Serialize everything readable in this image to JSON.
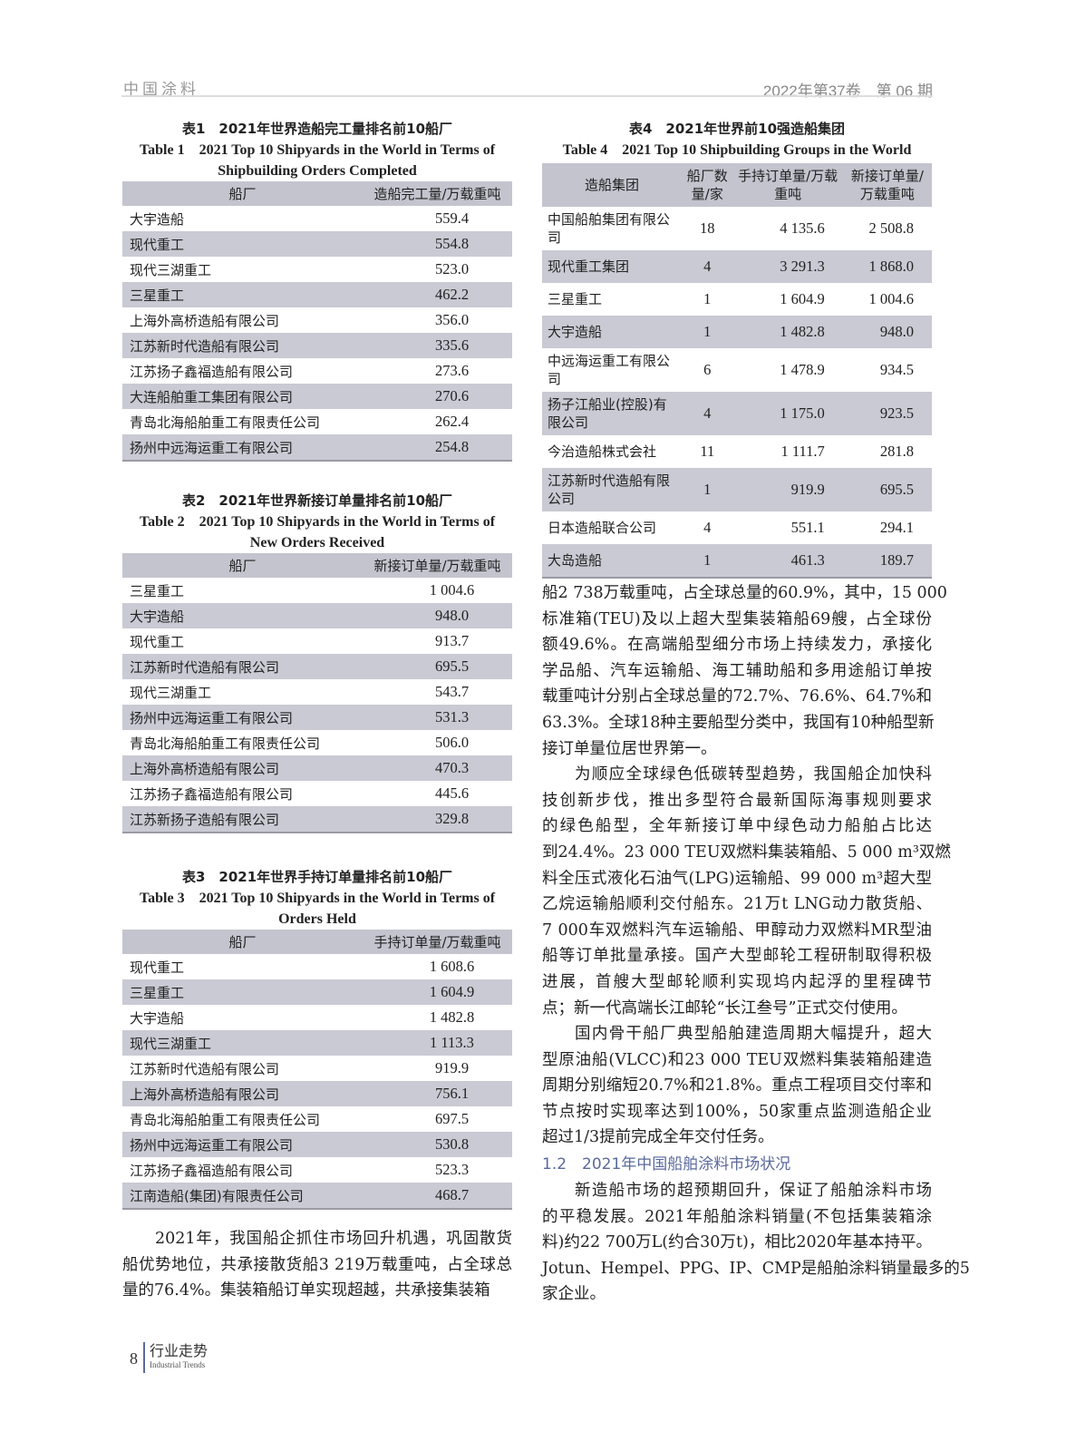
{
  "header": {
    "journal": "中国涂料",
    "issue": "2022年第37卷　第 06 期"
  },
  "table1": {
    "caption_cn": "表1　2021年世界造船完工量排名前10船厂",
    "caption_en": "Table 1　2021 Top 10 Shipyards in the World in Terms of Shipbuilding Orders Completed",
    "columns": [
      "船厂",
      "造船完工量/万载重吨"
    ],
    "rows": [
      [
        "大宇造船",
        "559.4"
      ],
      [
        "现代重工",
        "554.8"
      ],
      [
        "现代三湖重工",
        "523.0"
      ],
      [
        "三星重工",
        "462.2"
      ],
      [
        "上海外高桥造船有限公司",
        "356.0"
      ],
      [
        "江苏新时代造船有限公司",
        "335.6"
      ],
      [
        "江苏扬子鑫福造船有限公司",
        "273.6"
      ],
      [
        "大连船舶重工集团有限公司",
        "270.6"
      ],
      [
        "青岛北海船舶重工有限责任公司",
        "262.4"
      ],
      [
        "扬州中远海运重工有限公司",
        "254.8"
      ]
    ]
  },
  "table2": {
    "caption_cn": "表2　2021年世界新接订单量排名前10船厂",
    "caption_en": "Table 2　2021 Top 10 Shipyards in the World in Terms of New Orders Received",
    "columns": [
      "船厂",
      "新接订单量/万载重吨"
    ],
    "rows": [
      [
        "三星重工",
        "1 004.6"
      ],
      [
        "大宇造船",
        "948.0"
      ],
      [
        "现代重工",
        "913.7"
      ],
      [
        "江苏新时代造船有限公司",
        "695.5"
      ],
      [
        "现代三湖重工",
        "543.7"
      ],
      [
        "扬州中远海运重工有限公司",
        "531.3"
      ],
      [
        "青岛北海船舶重工有限责任公司",
        "506.0"
      ],
      [
        "上海外高桥造船有限公司",
        "470.3"
      ],
      [
        "江苏扬子鑫福造船有限公司",
        "445.6"
      ],
      [
        "江苏新扬子造船有限公司",
        "329.8"
      ]
    ]
  },
  "table3": {
    "caption_cn": "表3　2021年世界手持订单量排名前10船厂",
    "caption_en": "Table 3　2021 Top 10 Shipyards in the World in Terms of Orders Held",
    "columns": [
      "船厂",
      "手持订单量/万载重吨"
    ],
    "rows": [
      [
        "现代重工",
        "1 608.6"
      ],
      [
        "三星重工",
        "1 604.9"
      ],
      [
        "大宇造船",
        "1 482.8"
      ],
      [
        "现代三湖重工",
        "1 113.3"
      ],
      [
        "江苏新时代造船有限公司",
        "919.9"
      ],
      [
        "上海外高桥造船有限公司",
        "756.1"
      ],
      [
        "青岛北海船舶重工有限责任公司",
        "697.5"
      ],
      [
        "扬州中远海运重工有限公司",
        "530.8"
      ],
      [
        "江苏扬子鑫福造船有限公司",
        "523.3"
      ],
      [
        "江南造船(集团)有限责任公司",
        "468.7"
      ]
    ]
  },
  "table4": {
    "caption_cn": "表4　2021年世界前10强造船集团",
    "caption_en": "Table 4　2021 Top 10 Shipbuilding Groups in the World",
    "columns": [
      "造船集团",
      "船厂数量/家",
      "手持订单量/万载重吨",
      "新接订单量/万载重吨"
    ],
    "rows": [
      [
        "中国船舶集团有限公司",
        "18",
        "4 135.6",
        "2 508.8"
      ],
      [
        "现代重工集团",
        "4",
        "3 291.3",
        "1 868.0"
      ],
      [
        "三星重工",
        "1",
        "1 604.9",
        "1 004.6"
      ],
      [
        "大宇造船",
        "1",
        "1 482.8",
        "948.0"
      ],
      [
        "中远海运重工有限公司",
        "6",
        "1 478.9",
        "934.5"
      ],
      [
        "扬子江船业(控股)有限公司",
        "4",
        "1 175.0",
        "923.5"
      ],
      [
        "今治造船株式会社",
        "11",
        "1 111.7",
        "281.8"
      ],
      [
        "江苏新时代造船有限公司",
        "1",
        "919.9",
        "695.5"
      ],
      [
        "日本造船联合公司",
        "4",
        "551.1",
        "294.1"
      ],
      [
        "大岛造船",
        "1",
        "461.3",
        "189.7"
      ]
    ]
  },
  "body": {
    "left": [
      [
        "2021年，我国船企抓住市场回升机遇，巩固散货",
        "船优势地位，共承接散货船3 219万载重吨，占全球总",
        "量的76.4%。集装箱船订单实现超越，共承接集装箱"
      ]
    ],
    "right": [
      [
        "船2 738万载重吨，占全球总量的60.9%，其中，15 000",
        "标准箱(TEU)及以上超大型集装箱船69艘，占全球份",
        "额49.6%。在高端船型细分市场上持续发力，承接化",
        "学品船、汽车运输船、海工辅助船和多用途船订单按",
        "载重吨计分别占全球总量的72.7%、76.6%、64.7%和",
        "63.3%。全球18种主要船型分类中，我国有10种船型新",
        "接订单量位居世界第一。"
      ],
      [
        "为顺应全球绿色低碳转型趋势，我国船企加快科",
        "技创新步伐，推出多型符合最新国际海事规则要求",
        "的绿色船型，全年新接订单中绿色动力船舶占比达",
        "到24.4%。23 000 TEU双燃料集装箱船、5 000 m³双燃",
        "料全压式液化石油气(LPG)运输船、99 000 m³超大型",
        "乙烷运输船顺利交付船东。21万t LNG动力散货船、",
        "7 000车双燃料汽车运输船、甲醇动力双燃料MR型油",
        "船等订单批量承接。国产大型邮轮工程研制取得积极",
        "进展，首艘大型邮轮顺利实现坞内起浮的里程碑节",
        "点；新一代高端长江邮轮“长江叁号”正式交付使用。"
      ],
      [
        "国内骨干船厂典型船舶建造周期大幅提升，超大",
        "型原油船(VLCC)和23 000 TEU双燃料集装箱船建造",
        "周期分别缩短20.7%和21.8%。重点工程项目交付率和",
        "节点按时实现率达到100%，50家重点监测造船企业",
        "超过1/3提前完成全年交付任务。"
      ],
      [
        "新造船市场的超预期回升，保证了船舶涂料市场",
        "的平稳发展。2021年船舶涂料销量(不包括集装箱涂",
        "料)约22 700万L(约合30万t)，相比2020年基本持平。",
        "Jotun、Hempel、PPG、IP、CMP是船舶涂料销量最多的5",
        "家企业。"
      ]
    ],
    "section_heading": "1.2　2021年中国船舶涂料市场状况"
  },
  "footer": {
    "page_number": "8",
    "section_cn": "行业走势",
    "section_en": "Industrial Trends"
  },
  "colors": {
    "accent": "#5b6a9c",
    "table_band": "#c9cad3"
  }
}
